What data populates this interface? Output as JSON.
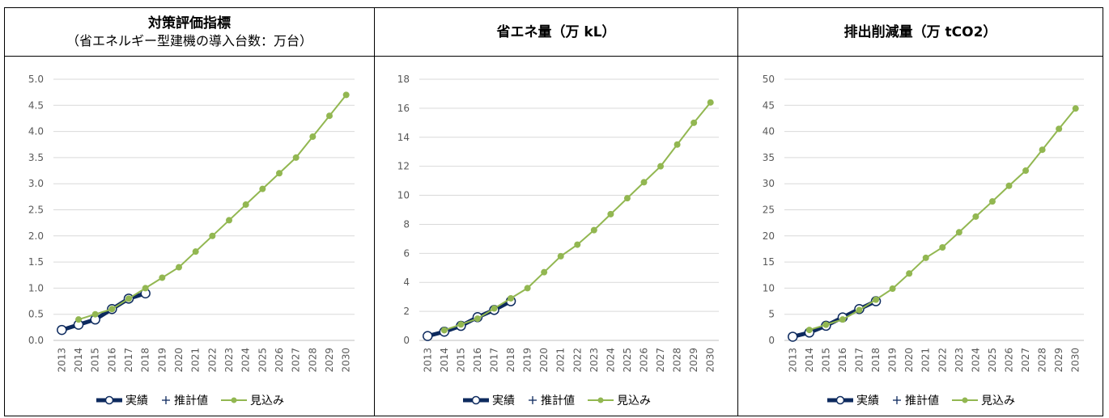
{
  "colors": {
    "actual": "#0d2a5e",
    "projected": "#92b751",
    "grid": "#d9d9d9",
    "axis": "#bfbfbf",
    "tick_text": "#595959"
  },
  "legend": {
    "actual": "実績",
    "estimate": "推計値",
    "projected": "見込み"
  },
  "chart_data": [
    {
      "type": "line",
      "title": "対策評価指標",
      "subtitle": "（省エネルギー型建機の導入台数：万台）",
      "x": [
        2013,
        2014,
        2015,
        2016,
        2017,
        2018,
        2019,
        2020,
        2021,
        2022,
        2023,
        2024,
        2025,
        2026,
        2027,
        2028,
        2029,
        2030
      ],
      "ylim": [
        0,
        5
      ],
      "yticks": [
        "0.0",
        "0.5",
        "1.0",
        "1.5",
        "2.0",
        "2.5",
        "3.0",
        "3.5",
        "4.0",
        "4.5",
        "5.0"
      ],
      "grid": true,
      "legend_position": "bottom",
      "series": [
        {
          "name": "実績",
          "x": [
            2013,
            2014,
            2015,
            2016,
            2017,
            2018
          ],
          "values": [
            0.2,
            0.3,
            0.4,
            0.6,
            0.8,
            0.9
          ]
        },
        {
          "name": "推計値",
          "x": [],
          "values": []
        },
        {
          "name": "見込み",
          "x": [
            2014,
            2015,
            2016,
            2017,
            2018,
            2019,
            2020,
            2021,
            2022,
            2023,
            2024,
            2025,
            2026,
            2027,
            2028,
            2029,
            2030
          ],
          "values": [
            0.4,
            0.5,
            0.6,
            0.8,
            1.0,
            1.2,
            1.4,
            1.7,
            2.0,
            2.3,
            2.6,
            2.9,
            3.2,
            3.5,
            3.9,
            4.3,
            4.7
          ]
        }
      ]
    },
    {
      "type": "line",
      "title": "省エネ量（万 kL）",
      "x": [
        2013,
        2014,
        2015,
        2016,
        2017,
        2018,
        2019,
        2020,
        2021,
        2022,
        2023,
        2024,
        2025,
        2026,
        2027,
        2028,
        2029,
        2030
      ],
      "ylim": [
        0,
        18
      ],
      "yticks": [
        "0",
        "2",
        "4",
        "6",
        "8",
        "10",
        "12",
        "14",
        "16",
        "18"
      ],
      "grid": true,
      "legend_position": "bottom",
      "series": [
        {
          "name": "実績",
          "x": [
            2013,
            2014,
            2015,
            2016,
            2017,
            2018
          ],
          "values": [
            0.3,
            0.6,
            1.0,
            1.6,
            2.1,
            2.7
          ]
        },
        {
          "name": "推計値",
          "x": [],
          "values": []
        },
        {
          "name": "見込み",
          "x": [
            2014,
            2015,
            2016,
            2017,
            2018,
            2019,
            2020,
            2021,
            2022,
            2023,
            2024,
            2025,
            2026,
            2027,
            2028,
            2029,
            2030
          ],
          "values": [
            0.7,
            1.1,
            1.5,
            2.2,
            2.9,
            3.6,
            4.7,
            5.8,
            6.6,
            7.6,
            8.7,
            9.8,
            10.9,
            12.0,
            13.5,
            15.0,
            16.4
          ]
        }
      ]
    },
    {
      "type": "line",
      "title": "排出削減量（万 tCO2）",
      "x": [
        2013,
        2014,
        2015,
        2016,
        2017,
        2018,
        2019,
        2020,
        2021,
        2022,
        2023,
        2024,
        2025,
        2026,
        2027,
        2028,
        2029,
        2030
      ],
      "ylim": [
        0,
        50
      ],
      "yticks": [
        "0",
        "5",
        "10",
        "15",
        "20",
        "25",
        "30",
        "35",
        "40",
        "45",
        "50"
      ],
      "grid": true,
      "legend_position": "bottom",
      "series": [
        {
          "name": "実績",
          "x": [
            2013,
            2014,
            2015,
            2016,
            2017,
            2018
          ],
          "values": [
            0.7,
            1.5,
            2.8,
            4.4,
            6.0,
            7.5
          ]
        },
        {
          "name": "推計値",
          "x": [],
          "values": []
        },
        {
          "name": "見込み",
          "x": [
            2014,
            2015,
            2016,
            2017,
            2018,
            2019,
            2020,
            2021,
            2022,
            2023,
            2024,
            2025,
            2026,
            2027,
            2028,
            2029,
            2030
          ],
          "values": [
            2.0,
            3.0,
            4.0,
            5.8,
            7.8,
            9.9,
            12.8,
            15.8,
            17.8,
            20.7,
            23.7,
            26.6,
            29.6,
            32.5,
            36.5,
            40.5,
            44.4
          ]
        }
      ]
    }
  ]
}
